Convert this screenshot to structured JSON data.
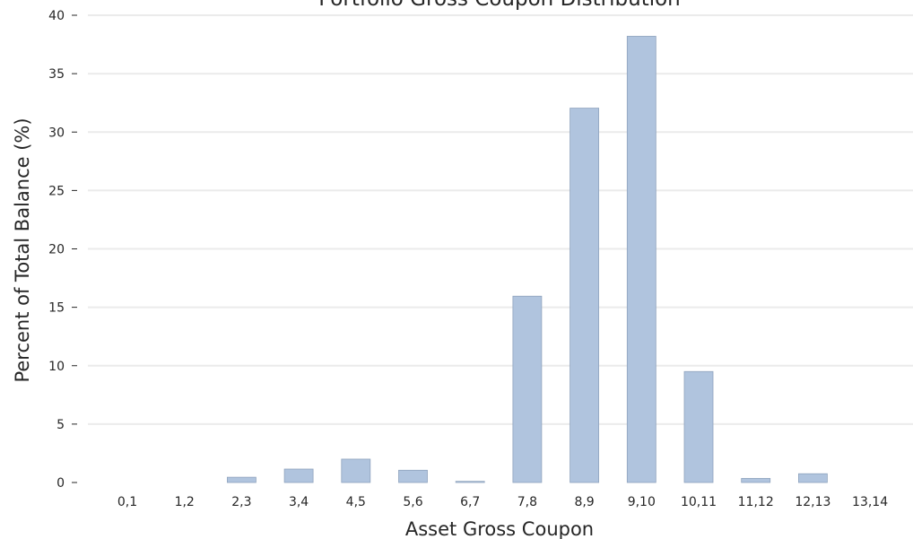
{
  "chart_data": {
    "type": "bar",
    "title": "Portfolio Gross Coupon Distribution",
    "xlabel": "Asset Gross Coupon",
    "ylabel": "Percent of Total Balance (%)",
    "categories": [
      "0,1",
      "1,2",
      "2,3",
      "3,4",
      "4,5",
      "5,6",
      "6,7",
      "7,8",
      "8,9",
      "9,10",
      "10,11",
      "11,12",
      "12,13",
      "13,14"
    ],
    "values": [
      0,
      0,
      0.45,
      1.15,
      2.0,
      1.05,
      0.1,
      15.95,
      32.05,
      38.2,
      9.5,
      0.35,
      0.75,
      0
    ],
    "ylim": [
      0,
      40
    ],
    "yticks": [
      0,
      5,
      10,
      15,
      20,
      25,
      30,
      35,
      40
    ],
    "grid": "horizontal",
    "colors": {
      "bar": "#b0c4de",
      "bar_edge": "#8fa3bd",
      "grid": "#ebebeb",
      "text": "#262626"
    }
  }
}
